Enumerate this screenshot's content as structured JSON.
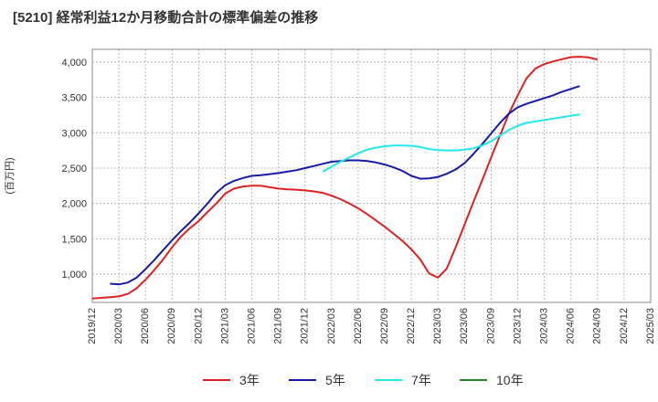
{
  "chart_data": {
    "type": "line",
    "title": "[5210]  経常利益12か月移動合計の標準偏差の推移",
    "ylabel": "(百万円)",
    "xlabel": "",
    "ylim": [
      600,
      4180
    ],
    "yticks": [
      1000,
      1500,
      2000,
      2500,
      3000,
      3500,
      4000
    ],
    "ytick_labels": [
      "1,000",
      "1,500",
      "2,000",
      "2,500",
      "3,000",
      "3,500",
      "4,000"
    ],
    "x_start": "2019-12",
    "x_end": "2025-03",
    "xtick_labels": [
      "2019/12",
      "2020/03",
      "2020/06",
      "2020/09",
      "2020/12",
      "2021/03",
      "2021/06",
      "2021/09",
      "2021/12",
      "2022/03",
      "2022/06",
      "2022/09",
      "2022/12",
      "2023/03",
      "2023/06",
      "2023/09",
      "2023/12",
      "2024/03",
      "2024/06",
      "2024/09",
      "2024/12",
      "2025/03"
    ],
    "grid": true,
    "legend_position": "bottom",
    "series": [
      {
        "name": "3年",
        "color": "#dd2222",
        "start": "2019-12",
        "values": [
          655,
          665,
          675,
          685,
          720,
          800,
          920,
          1060,
          1210,
          1380,
          1530,
          1650,
          1750,
          1880,
          2000,
          2140,
          2210,
          2240,
          2250,
          2250,
          2230,
          2210,
          2200,
          2195,
          2185,
          2170,
          2150,
          2110,
          2060,
          2000,
          1930,
          1850,
          1760,
          1670,
          1570,
          1470,
          1350,
          1210,
          1010,
          950,
          1080,
          1380,
          1700,
          2020,
          2330,
          2650,
          2960,
          3270,
          3530,
          3770,
          3910,
          3970,
          4010,
          4040,
          4070,
          4075,
          4065,
          4035
        ]
      },
      {
        "name": "5年",
        "color": "#1a1aaa",
        "start": "2020-02",
        "values": [
          865,
          855,
          880,
          950,
          1070,
          1200,
          1340,
          1480,
          1610,
          1730,
          1860,
          2000,
          2150,
          2260,
          2320,
          2360,
          2390,
          2400,
          2415,
          2430,
          2450,
          2470,
          2500,
          2530,
          2560,
          2590,
          2600,
          2610,
          2610,
          2600,
          2580,
          2550,
          2510,
          2460,
          2390,
          2350,
          2355,
          2375,
          2420,
          2480,
          2570,
          2700,
          2840,
          2990,
          3140,
          3270,
          3360,
          3410,
          3450,
          3490,
          3530,
          3580,
          3620,
          3660
        ]
      },
      {
        "name": "7年",
        "color": "#22e8ee",
        "start": "2022-02",
        "values": [
          2450,
          2520,
          2590,
          2650,
          2710,
          2760,
          2790,
          2810,
          2820,
          2820,
          2815,
          2800,
          2770,
          2755,
          2750,
          2750,
          2760,
          2780,
          2820,
          2880,
          2960,
          3040,
          3100,
          3140,
          3160,
          3180,
          3200,
          3220,
          3240,
          3260
        ]
      },
      {
        "name": "10年",
        "color": "#228822",
        "start": "2019-12",
        "values": []
      }
    ]
  }
}
